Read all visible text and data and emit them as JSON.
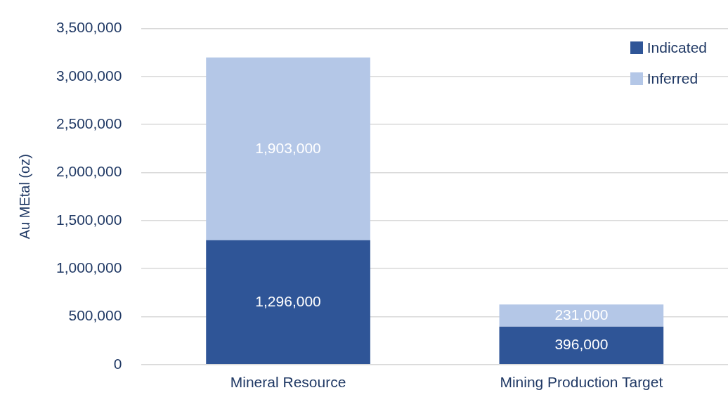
{
  "chart_data": {
    "type": "bar",
    "stacked": true,
    "ylabel": "Au MEtal (oz)",
    "categories": [
      "Mineral Resource",
      "Mining Production Target"
    ],
    "series": [
      {
        "name": "Indicated",
        "color": "#2f5597",
        "values": [
          1296000,
          396000
        ],
        "value_labels": [
          "1,296,000",
          "396,000"
        ]
      },
      {
        "name": "Inferred",
        "color": "#b4c7e7",
        "values": [
          1903000,
          231000
        ],
        "value_labels": [
          "1,903,000",
          "231,000"
        ]
      }
    ],
    "ylim": [
      0,
      3500000
    ],
    "yticks": [
      0,
      {
        "value": 500000,
        "label": "500,000"
      },
      {
        "value": 1000000,
        "label": "1,000,000"
      },
      {
        "value": 1500000,
        "label": "1,500,000"
      },
      {
        "value": 2000000,
        "label": "2,000,000"
      },
      {
        "value": 2500000,
        "label": "2,500,000"
      },
      {
        "value": 3000000,
        "label": "3,000,000"
      },
      {
        "value": 3500000,
        "label": "3,500,000"
      }
    ],
    "grid": "y",
    "legend": "top right"
  }
}
